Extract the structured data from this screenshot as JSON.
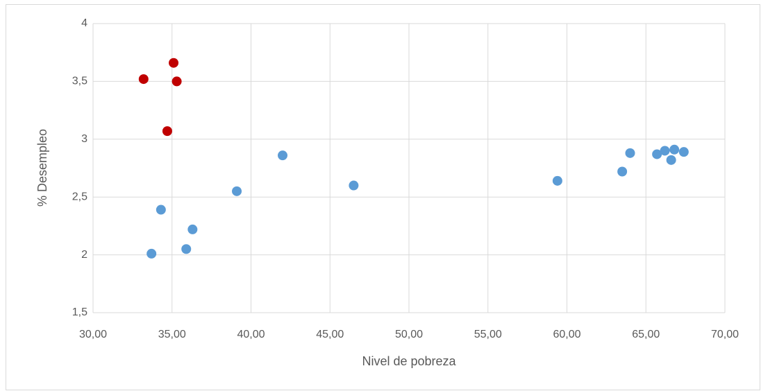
{
  "chart_data": {
    "type": "scatter",
    "x_label": "Nivel de pobreza",
    "y_label": "% Desempleo",
    "xlim": [
      30,
      70
    ],
    "xticks": [
      {
        "value": 30,
        "label": "30,00"
      },
      {
        "value": 35,
        "label": "35,00"
      },
      {
        "value": 40,
        "label": "40,00"
      },
      {
        "value": 45,
        "label": "45,00"
      },
      {
        "value": 50,
        "label": "50,00"
      },
      {
        "value": 55,
        "label": "55,00"
      },
      {
        "value": 60,
        "label": "60,00"
      },
      {
        "value": 65,
        "label": "65,00"
      },
      {
        "value": 70,
        "label": "70,00"
      }
    ],
    "ylim": [
      1.5,
      4
    ],
    "yticks": [
      {
        "value": 1.5,
        "label": "1,5"
      },
      2,
      {
        "value": 2.5,
        "label": "2,5"
      },
      3,
      {
        "value": 3.5,
        "label": "3,5"
      },
      4
    ],
    "grid": true,
    "series": [
      {
        "color": "#5b9bd5",
        "x": [
          33.7,
          34.3,
          35.9,
          36.3,
          39.1,
          42.0,
          46.5,
          59.4,
          63.5,
          64.0,
          65.7,
          66.2,
          66.6,
          66.8,
          67.4
        ],
        "values": [
          2.01,
          2.39,
          2.05,
          2.22,
          2.55,
          2.86,
          2.6,
          2.64,
          2.72,
          2.88,
          2.87,
          2.9,
          2.82,
          2.91,
          2.89
        ]
      },
      {
        "color": "#c00000",
        "x": [
          33.2,
          35.1,
          35.3,
          34.7
        ],
        "values": [
          3.52,
          3.66,
          3.5,
          3.07
        ]
      }
    ]
  }
}
